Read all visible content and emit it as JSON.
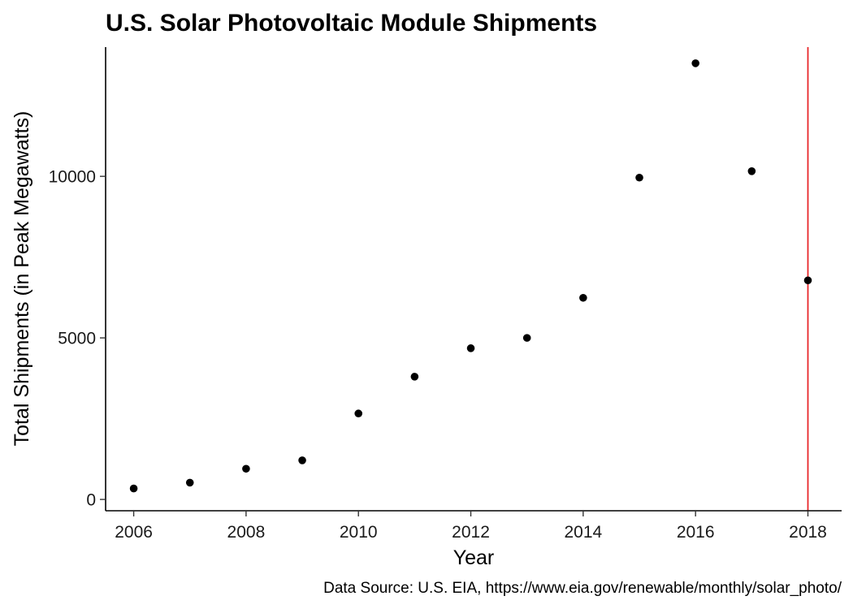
{
  "chart_data": {
    "type": "scatter",
    "title": "U.S. Solar Photovoltaic Module Shipments",
    "xlabel": "Year",
    "ylabel": "Total Shipments (in Peak Megawatts)",
    "caption": "Data Source: U.S. EIA, https://www.eia.gov/renewable/monthly/solar_photo/",
    "x": [
      2006,
      2007,
      2008,
      2009,
      2010,
      2011,
      2012,
      2013,
      2014,
      2015,
      2016,
      2017,
      2018
    ],
    "y": [
      340,
      520,
      950,
      1210,
      2660,
      3800,
      4680,
      5000,
      6240,
      9960,
      13500,
      10160,
      6780
    ],
    "xlim": [
      2005.5,
      2018.6
    ],
    "ylim": [
      -350,
      14000
    ],
    "x_ticks": [
      "2006",
      "2008",
      "2010",
      "2012",
      "2014",
      "2016",
      "2018"
    ],
    "y_ticks": [
      "0",
      "5000",
      "10000"
    ],
    "vline": {
      "x": 2018,
      "color": "#e8272a"
    },
    "point_color": "#000000",
    "grid": false,
    "legend": "none"
  }
}
